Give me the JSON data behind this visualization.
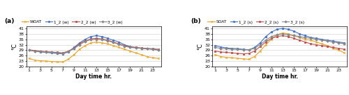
{
  "x": [
    1,
    2,
    3,
    4,
    5,
    6,
    7,
    8,
    9,
    10,
    11,
    12,
    13,
    14,
    15,
    16,
    17,
    18,
    19,
    20,
    21,
    22,
    23,
    24
  ],
  "winter": {
    "WOAT": [
      24.5,
      23.5,
      23.2,
      23.0,
      22.8,
      22.6,
      22.5,
      24.0,
      26.5,
      29.5,
      31.5,
      33.0,
      33.5,
      33.0,
      32.5,
      31.5,
      30.5,
      29.5,
      28.5,
      27.5,
      26.5,
      25.5,
      24.8,
      24.5
    ],
    "1_2": [
      29.0,
      28.5,
      28.0,
      27.8,
      27.5,
      27.2,
      27.0,
      28.0,
      30.5,
      33.0,
      35.0,
      36.5,
      37.0,
      36.5,
      35.5,
      34.5,
      33.5,
      32.0,
      31.0,
      30.5,
      30.0,
      29.8,
      29.5,
      29.0
    ],
    "2_2": [
      29.2,
      28.8,
      28.5,
      28.2,
      28.0,
      27.8,
      27.5,
      28.5,
      30.0,
      32.5,
      34.2,
      35.2,
      35.5,
      35.2,
      34.5,
      33.5,
      32.5,
      31.5,
      30.8,
      30.5,
      30.2,
      30.0,
      29.8,
      29.5
    ],
    "3_2": [
      29.0,
      28.5,
      28.2,
      28.0,
      27.8,
      27.5,
      27.2,
      28.2,
      29.8,
      32.0,
      33.8,
      34.8,
      35.0,
      34.8,
      34.2,
      33.2,
      32.2,
      31.2,
      30.5,
      30.2,
      30.0,
      29.8,
      29.5,
      29.2
    ]
  },
  "summer": {
    "SOAT": [
      26.5,
      25.5,
      25.0,
      24.8,
      24.5,
      24.2,
      24.0,
      25.5,
      28.5,
      32.0,
      35.0,
      37.5,
      38.5,
      38.0,
      37.0,
      36.0,
      35.0,
      34.5,
      33.5,
      32.5,
      31.5,
      30.0,
      29.0,
      27.5
    ],
    "1_2": [
      31.5,
      30.8,
      30.2,
      30.0,
      29.8,
      29.5,
      29.2,
      30.5,
      33.0,
      36.5,
      39.0,
      40.5,
      41.0,
      40.5,
      39.5,
      38.0,
      37.0,
      36.0,
      35.5,
      35.0,
      34.5,
      34.0,
      33.5,
      33.0
    ],
    "2_2": [
      28.5,
      28.0,
      27.8,
      27.5,
      27.2,
      27.0,
      27.2,
      28.5,
      31.0,
      33.5,
      35.5,
      36.5,
      37.0,
      36.5,
      35.5,
      34.5,
      33.5,
      32.5,
      32.0,
      31.5,
      31.0,
      30.5,
      30.0,
      29.5
    ],
    "3_2": [
      30.5,
      30.0,
      29.8,
      29.5,
      29.5,
      29.2,
      29.2,
      30.0,
      32.0,
      34.5,
      36.5,
      37.5,
      38.0,
      37.5,
      37.0,
      36.5,
      36.0,
      35.5,
      35.0,
      34.5,
      34.0,
      33.5,
      33.0,
      32.5
    ]
  },
  "ylim": [
    20,
    42
  ],
  "yticks": [
    20,
    23,
    26,
    29,
    32,
    35,
    38,
    41
  ],
  "xticks": [
    1,
    3,
    5,
    7,
    9,
    11,
    13,
    15,
    17,
    19,
    21,
    23
  ],
  "colors": {
    "WOAT": "#e8a020",
    "SOAT": "#e8a020",
    "1_2": "#4472c4",
    "2_2": "#c0504d",
    "3_2": "#888888"
  },
  "xlabel": "Day time hr.",
  "ylabel": "°C",
  "legend_a": [
    "WOAT",
    "1_2 (w)",
    "2_2 (w)",
    "3_2 (w)"
  ],
  "legend_b": [
    "SOAT",
    "1_2 (s)",
    "2_2 (s)",
    "3_2 (s)"
  ]
}
